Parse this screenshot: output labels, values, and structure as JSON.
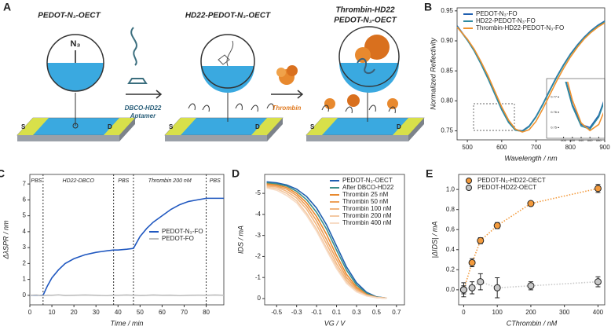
{
  "schematic": {
    "panel": "A",
    "stages": [
      {
        "title": [
          "PEDOT-N₃-OECT"
        ]
      },
      {
        "title": [
          "HD22-PEDOT-N₃-OECT"
        ]
      },
      {
        "title": [
          "Thrombin-HD22",
          "PEDOT-N₃-OECT"
        ]
      }
    ],
    "azide": "N₃",
    "source": "S",
    "drain": "D",
    "step1": [
      "DBCO-HD22",
      "Aptamer"
    ],
    "step2": "Thrombin"
  },
  "chart_data": [
    {
      "type": "line",
      "panel": "B",
      "x_label": "Wavelength / nm",
      "y_label": "Normalized Reflectivity",
      "xlim": [
        470,
        900
      ],
      "ylim": [
        0.735,
        0.955
      ],
      "xticks": [
        500,
        600,
        700,
        800,
        900
      ],
      "yticks": [
        0.75,
        {
          "value": 0.8,
          "label": "0.80"
        },
        0.85,
        {
          "value": 0.9,
          "label": "0.90"
        },
        0.95
      ],
      "legend": "upper left",
      "x": [
        470,
        500,
        520,
        540,
        560,
        580,
        600,
        620,
        640,
        660,
        680,
        700,
        720,
        740,
        760,
        780,
        800,
        820,
        840,
        860,
        880,
        900
      ],
      "series": [
        {
          "name": "PEDOT-N₃-FO",
          "color": "#1f5fb0",
          "values": [
            0.925,
            0.902,
            0.884,
            0.862,
            0.838,
            0.812,
            0.786,
            0.765,
            0.752,
            0.75,
            0.758,
            0.774,
            0.795,
            0.818,
            0.84,
            0.86,
            0.878,
            0.893,
            0.906,
            0.917,
            0.926,
            0.933
          ]
        },
        {
          "name": "HD22-PEDOT-N₃-FO",
          "color": "#2f8aa0",
          "values": [
            0.924,
            0.901,
            0.883,
            0.861,
            0.837,
            0.811,
            0.785,
            0.764,
            0.751,
            0.749,
            0.757,
            0.773,
            0.794,
            0.817,
            0.839,
            0.859,
            0.877,
            0.892,
            0.905,
            0.916,
            0.925,
            0.932
          ]
        },
        {
          "name": "Thrombin-HD22-PEDOT-N₃-FO",
          "color": "#f0922e",
          "values": [
            0.923,
            0.903,
            0.886,
            0.865,
            0.842,
            0.816,
            0.79,
            0.768,
            0.753,
            0.748,
            0.752,
            0.766,
            0.787,
            0.81,
            0.833,
            0.854,
            0.873,
            0.889,
            0.903,
            0.914,
            0.923,
            0.93
          ]
        }
      ],
      "inset": {
        "xlim": [
          590,
          690
        ],
        "ylim": [
          0.744,
          0.78
        ],
        "xticks": [
          600,
          620,
          640,
          660,
          680
        ],
        "yticks": [
          0.75,
          0.76,
          0.77
        ]
      }
    },
    {
      "type": "line",
      "panel": "C",
      "x_label": "Time / min",
      "y_label": "ΔλSPR / nm",
      "xlim": [
        0,
        88
      ],
      "ylim": [
        -0.6,
        7.6
      ],
      "xticks": [
        0,
        10,
        20,
        30,
        40,
        50,
        60,
        70,
        80
      ],
      "yticks": [
        0,
        1,
        2,
        3,
        4,
        5,
        6,
        7
      ],
      "legend": "lower right",
      "phase_boundaries": [
        6,
        38,
        47,
        80
      ],
      "phase_labels": [
        "PBS",
        "HD22-DBCO",
        "PBS",
        "Thrombin 200 nM",
        "PBS"
      ],
      "x": [
        0,
        3,
        6,
        8,
        10,
        13,
        16,
        20,
        25,
        30,
        35,
        38,
        40,
        44,
        47,
        48,
        50,
        53,
        56,
        60,
        64,
        68,
        72,
        76,
        80,
        84,
        88
      ],
      "series": [
        {
          "name": "PEDOT-N₃-FO",
          "color": "#2058c0",
          "values": [
            0,
            0,
            0,
            0.6,
            1.1,
            1.6,
            2.0,
            2.3,
            2.55,
            2.7,
            2.8,
            2.85,
            2.85,
            2.9,
            2.95,
            3.2,
            3.7,
            4.2,
            4.6,
            5.0,
            5.4,
            5.7,
            5.9,
            6.0,
            6.1,
            6.1,
            6.1
          ]
        },
        {
          "name": "PEDOT-FO",
          "color": "#bdbdbd",
          "values": [
            0,
            0.02,
            -0.02,
            0.01,
            0,
            0.03,
            -0.01,
            0,
            0.02,
            0,
            -0.02,
            0.01,
            0,
            0.02,
            0,
            0.01,
            -0.01,
            0,
            0.02,
            0,
            0.01,
            -0.02,
            0,
            0.01,
            0,
            0.02,
            0
          ]
        }
      ]
    },
    {
      "type": "line",
      "panel": "D",
      "x_label": "VG / V",
      "y_label": "IDS / mA",
      "xlim": [
        -0.62,
        0.78
      ],
      "ylim": [
        0.3,
        -5.9
      ],
      "xticks": [
        -0.5,
        -0.3,
        -0.1,
        0.1,
        0.3,
        0.5,
        0.7
      ],
      "yticks": [
        0,
        -1,
        -2,
        -3,
        -4,
        -5
      ],
      "legend": "upper right",
      "x": [
        -0.6,
        -0.5,
        -0.4,
        -0.3,
        -0.2,
        -0.1,
        0,
        0.1,
        0.2,
        0.3,
        0.4,
        0.5,
        0.6
      ],
      "series": [
        {
          "name": "PEDOT-N₃-OECT",
          "color": "#1f5fb0",
          "values": [
            -5.55,
            -5.5,
            -5.4,
            -5.2,
            -4.85,
            -4.3,
            -3.5,
            -2.5,
            -1.5,
            -0.75,
            -0.3,
            -0.08,
            -0.02
          ]
        },
        {
          "name": "After DBCO-HD22",
          "color": "#3b8f8a",
          "values": [
            -5.5,
            -5.45,
            -5.35,
            -5.1,
            -4.7,
            -4.1,
            -3.3,
            -2.3,
            -1.35,
            -0.65,
            -0.25,
            -0.07,
            -0.02
          ]
        },
        {
          "name": "Thrombin 25 nM",
          "color": "#e8892e",
          "values": [
            -5.45,
            -5.4,
            -5.28,
            -5.0,
            -4.55,
            -3.9,
            -3.05,
            -2.05,
            -1.15,
            -0.55,
            -0.2,
            -0.06,
            -0.02
          ]
        },
        {
          "name": "Thrombin 50 nM",
          "color": "#eda05a",
          "values": [
            -5.4,
            -5.35,
            -5.2,
            -4.9,
            -4.4,
            -3.7,
            -2.8,
            -1.85,
            -1.0,
            -0.48,
            -0.18,
            -0.05,
            -0.02
          ]
        },
        {
          "name": "Thrombin 100 nM",
          "color": "#f1b57e",
          "values": [
            -5.35,
            -5.3,
            -5.1,
            -4.78,
            -4.25,
            -3.5,
            -2.6,
            -1.65,
            -0.88,
            -0.4,
            -0.15,
            -0.05,
            -0.02
          ]
        },
        {
          "name": "Thrombin 200 nM",
          "color": "#f4c9a3",
          "values": [
            -5.3,
            -5.22,
            -5.0,
            -4.65,
            -4.05,
            -3.3,
            -2.4,
            -1.5,
            -0.78,
            -0.35,
            -0.13,
            -0.04,
            -0.01
          ]
        },
        {
          "name": "Thrombin 400 nM",
          "color": "#f7dcc6",
          "values": [
            -5.25,
            -5.15,
            -4.9,
            -4.55,
            -3.95,
            -3.2,
            -2.3,
            -1.42,
            -0.72,
            -0.32,
            -0.12,
            -0.04,
            -0.01
          ]
        }
      ]
    },
    {
      "type": "scatter",
      "panel": "E",
      "x_label": "CThrombin / nM",
      "y_label": "|ΔIDS| / mA",
      "xlim": [
        -15,
        420
      ],
      "ylim": [
        -0.15,
        1.15
      ],
      "xticks": [
        0,
        100,
        200,
        300,
        400
      ],
      "yticks": [
        {
          "value": 0,
          "label": "0.0"
        },
        0.2,
        0.4,
        0.6,
        0.8,
        {
          "value": 1,
          "label": "1.0"
        }
      ],
      "legend": "upper left",
      "x": [
        0,
        25,
        50,
        100,
        200,
        400
      ],
      "series": [
        {
          "name": "PEDOT-N₃-HD22-OECT",
          "color": "#f39a3c",
          "values": [
            0,
            0.27,
            0.49,
            0.64,
            0.86,
            1.01
          ],
          "errors": [
            0.04,
            0.04,
            0.03,
            0.03,
            0.02,
            0.04
          ]
        },
        {
          "name": "PEDOT-HD22-OECT",
          "color": "#c8c8c8",
          "values": [
            0,
            0.02,
            0.08,
            0.02,
            0.04,
            0.08
          ],
          "errors": [
            0.07,
            0.06,
            0.08,
            0.1,
            0.04,
            0.05
          ]
        }
      ]
    }
  ]
}
